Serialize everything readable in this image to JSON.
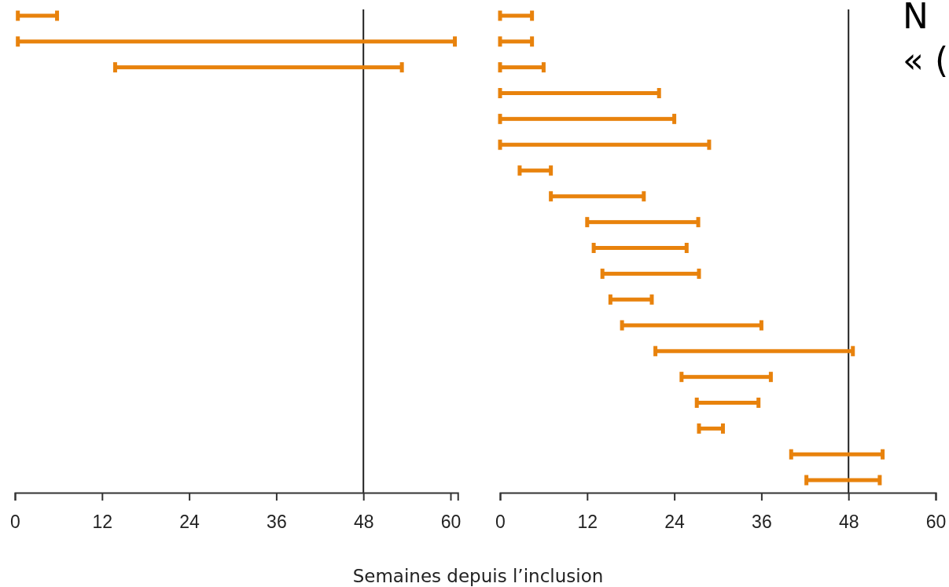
{
  "chart_data": [
    {
      "type": "bar",
      "orientation": "horizontal",
      "xlabel": "Semaines depuis l’inclusion",
      "categories": [
        null,
        null,
        null,
        null,
        null,
        null,
        null,
        null,
        null,
        null,
        null,
        null,
        null,
        null,
        null,
        null,
        null,
        null,
        null
      ],
      "base": [
        0.4,
        0.4,
        13.8,
        null,
        null,
        null,
        null,
        null,
        null,
        null,
        null,
        null,
        null,
        null,
        null,
        null,
        null,
        null,
        null
      ],
      "values": [
        5.4,
        60.2,
        39.5,
        null,
        null,
        null,
        null,
        null,
        null,
        null,
        null,
        null,
        null,
        null,
        null,
        null,
        null,
        null,
        null
      ],
      "color": "#e8820c",
      "xlim": [
        0,
        61
      ],
      "xticks": [
        0,
        12,
        24,
        36,
        48,
        60
      ],
      "tick_labels": "x",
      "ref_lines": [
        {
          "axis": "x",
          "value": 48,
          "color": "#222222"
        }
      ]
    },
    {
      "type": "bar",
      "orientation": "horizontal",
      "categories": [
        null,
        null,
        null,
        null,
        null,
        null,
        null,
        null,
        null,
        null,
        null,
        null,
        null,
        null,
        null,
        null,
        null,
        null,
        null
      ],
      "base": [
        0,
        0,
        0,
        0,
        0,
        0,
        2.7,
        7.0,
        12.0,
        12.9,
        14.1,
        15.2,
        16.8,
        21.4,
        25.0,
        27.1,
        27.4,
        40.1,
        42.2
      ],
      "values": [
        4.4,
        4.4,
        6.0,
        21.9,
        24.0,
        28.8,
        4.3,
        12.8,
        15.3,
        12.8,
        13.3,
        5.7,
        19.2,
        27.2,
        12.3,
        8.5,
        3.3,
        12.6,
        10.1
      ],
      "color": "#e8820c",
      "xlim": [
        0,
        60
      ],
      "xticks": [
        0,
        12,
        24,
        36,
        48,
        60
      ],
      "tick_labels": "x",
      "ref_lines": [
        {
          "axis": "x",
          "value": 48,
          "color": "#222222"
        }
      ],
      "annotations": [
        "N",
        "« ("
      ]
    }
  ]
}
